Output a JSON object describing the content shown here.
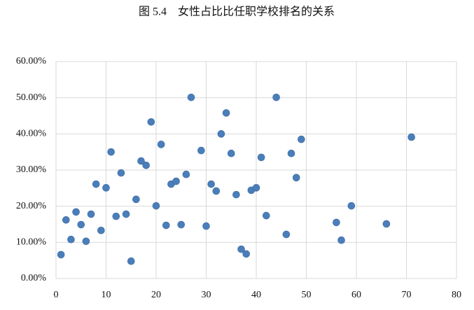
{
  "chart_data": {
    "type": "scatter",
    "title": "图 5.4　女性占比比任职学校排名的关系",
    "color": "#4a7ebb",
    "grid": true,
    "x": [
      1,
      2,
      3,
      4,
      5,
      6,
      7,
      8,
      9,
      10,
      11,
      12,
      13,
      14,
      15,
      16,
      17,
      18,
      19,
      20,
      21,
      22,
      23,
      24,
      25,
      26,
      27,
      29,
      30,
      31,
      32,
      33,
      34,
      35,
      36,
      37,
      38,
      39,
      40,
      41,
      42,
      44,
      46,
      47,
      48,
      49,
      56,
      57,
      59,
      66,
      71
    ],
    "values": [
      6.6,
      16.2,
      10.8,
      18.4,
      14.9,
      10.3,
      17.8,
      26.1,
      13.3,
      25.1,
      35.0,
      17.2,
      29.2,
      17.8,
      4.8,
      21.9,
      32.5,
      31.3,
      43.3,
      20.1,
      37.1,
      14.7,
      26.1,
      26.9,
      14.9,
      28.8,
      50.1,
      35.4,
      14.5,
      26.1,
      24.2,
      40.0,
      45.8,
      34.6,
      23.2,
      8.1,
      6.8,
      24.4,
      25.1,
      33.5,
      17.4,
      50.1,
      12.2,
      34.6,
      27.9,
      38.5,
      15.5,
      10.6,
      20.1,
      15.1,
      39.1
    ],
    "xlim": [
      0,
      80
    ],
    "xticks": [
      0,
      10,
      20,
      30,
      40,
      50,
      60,
      70,
      80
    ],
    "ylim": [
      0,
      60
    ],
    "yticks": [
      {
        "value": 0,
        "label": "0.00%"
      },
      {
        "value": 10,
        "label": "10.00%"
      },
      {
        "value": 20,
        "label": "20.00%"
      },
      {
        "value": 30,
        "label": "30.00%"
      },
      {
        "value": 40,
        "label": "40.00%"
      },
      {
        "value": 50,
        "label": "50.00%"
      },
      {
        "value": 60,
        "label": "60.00%"
      }
    ]
  }
}
